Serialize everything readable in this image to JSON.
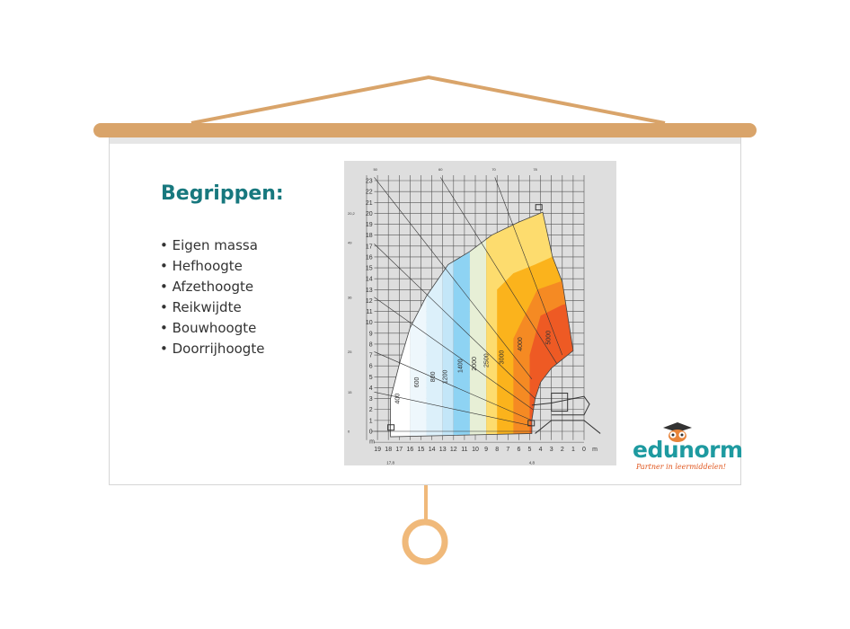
{
  "slide": {
    "title": "Begrippen:",
    "bullets": [
      "Eigen massa",
      "Hefhoogte",
      "Afzethoogte",
      "Reikwijdte",
      "Bouwhoogte",
      "Doorrijhoogte"
    ]
  },
  "load_chart": {
    "y_ticks": [
      "0",
      "1",
      "2",
      "3",
      "4",
      "5",
      "6",
      "7",
      "8",
      "9",
      "10",
      "11",
      "12",
      "13",
      "14",
      "15",
      "16",
      "17",
      "18",
      "19",
      "20",
      "21",
      "22",
      "23"
    ],
    "x_ticks": [
      "19",
      "18",
      "17",
      "16",
      "15",
      "14",
      "13",
      "12",
      "11",
      "10",
      "9",
      "8",
      "7",
      "6",
      "5",
      "4",
      "3",
      "2",
      "1",
      "0"
    ],
    "unit": "m",
    "top_angle_labels": [
      "50",
      "60",
      "70",
      "78"
    ],
    "left_angle_labels": [
      "20,2",
      "49",
      "36",
      "25",
      "15",
      "0"
    ],
    "bottom_labels": [
      "17,8",
      "4,8"
    ],
    "zones": [
      {
        "load": "400",
        "color": "#ffffff"
      },
      {
        "load": "600",
        "color": "#eef7fc"
      },
      {
        "load": "800",
        "color": "#dcf0fa"
      },
      {
        "load": "1200",
        "color": "#c3e6f8"
      },
      {
        "load": "1400",
        "color": "#8ed3f3"
      },
      {
        "load": "2000",
        "color": "#e7efd6"
      },
      {
        "load": "2500",
        "color": "#fddc6e"
      },
      {
        "load": "3000",
        "color": "#fbb31c"
      },
      {
        "load": "4000",
        "color": "#f58a23"
      },
      {
        "load": "5000",
        "color": "#ee5a24"
      }
    ]
  },
  "logo": {
    "part1": "edu",
    "part2": "norm",
    "tagline": "Partner in leermiddelen!"
  },
  "colors": {
    "rod": "#d9a46a",
    "ring": "#f0b97a",
    "title": "#17787e",
    "logo_teal": "#1e9aa0",
    "logo_orange": "#e0561e"
  }
}
